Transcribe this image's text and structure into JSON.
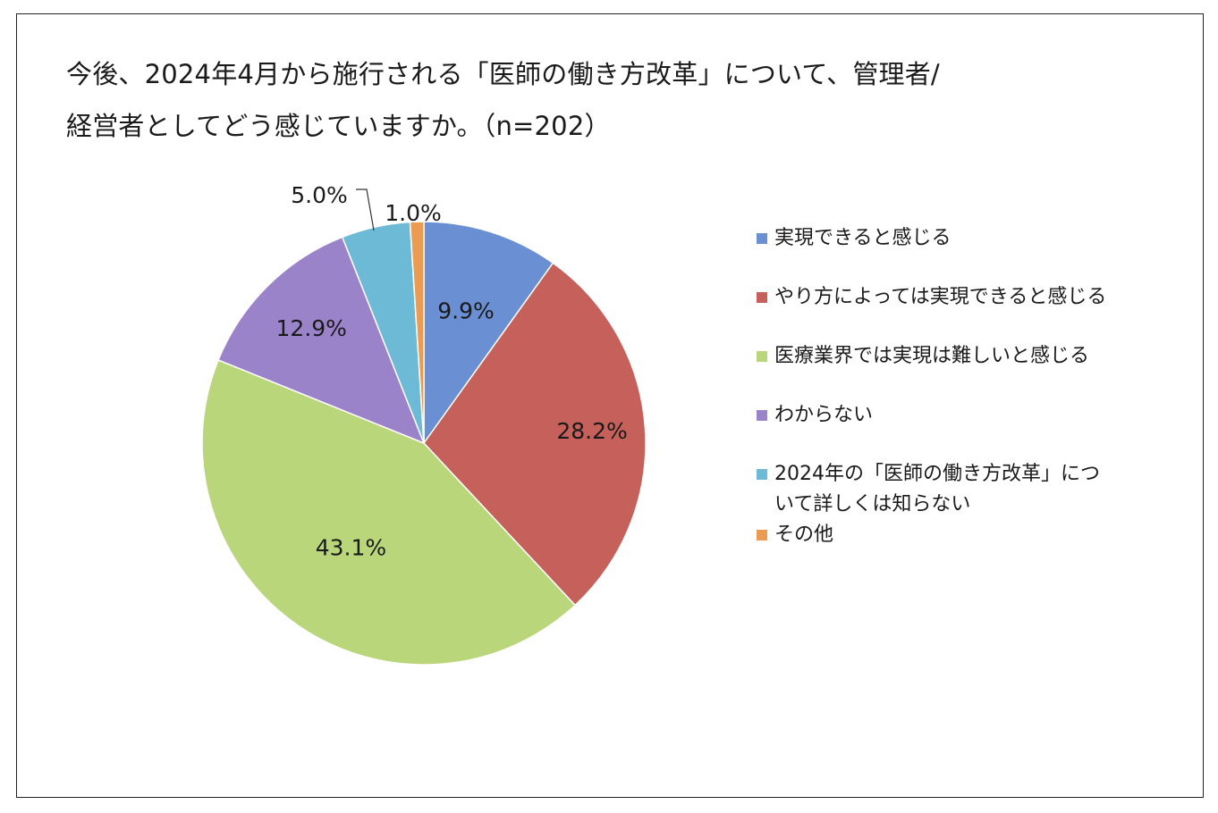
{
  "title": {
    "line1": "今後、2024年4月から施行される「医師の働き方改革」について、管理者/",
    "line2": "経営者としてどう感じていますか。（n=202）"
  },
  "chart_data": {
    "type": "pie",
    "title": "今後、2024年4月から施行される「医師の働き方改革」について、管理者/経営者としてどう感じていますか。（n=202）",
    "legend_position": "right",
    "slices": [
      {
        "label": "実現できると感じる",
        "value": 9.9,
        "value_label": "9.9%",
        "color": "#6a8fd3"
      },
      {
        "label": "やり方によっては実現できると感じる",
        "value": 28.2,
        "value_label": "28.2%",
        "color": "#c5605a"
      },
      {
        "label": "医療業界では実現は難しいと感じる",
        "value": 43.1,
        "value_label": "43.1%",
        "color": "#b9d77a"
      },
      {
        "label": "わからない",
        "value": 12.9,
        "value_label": "12.9%",
        "color": "#9b83c9"
      },
      {
        "label": "2024年の「医師の働き方改革」について詳しくは知らない",
        "value": 5.0,
        "value_label": "5.0%",
        "color": "#6cbad6"
      },
      {
        "label": "その他",
        "value": 1.0,
        "value_label": "1.0%",
        "color": "#ec9b52"
      }
    ]
  },
  "legend": {
    "item_0": "実現できると感じる",
    "item_1": "やり方によっては実現できると感じる",
    "item_2": "医療業界では実現は難しいと感じる",
    "item_3": "わからない",
    "item_4": "2024年の「医師の働き方改革」について詳しくは知らない",
    "item_5": "その他"
  }
}
